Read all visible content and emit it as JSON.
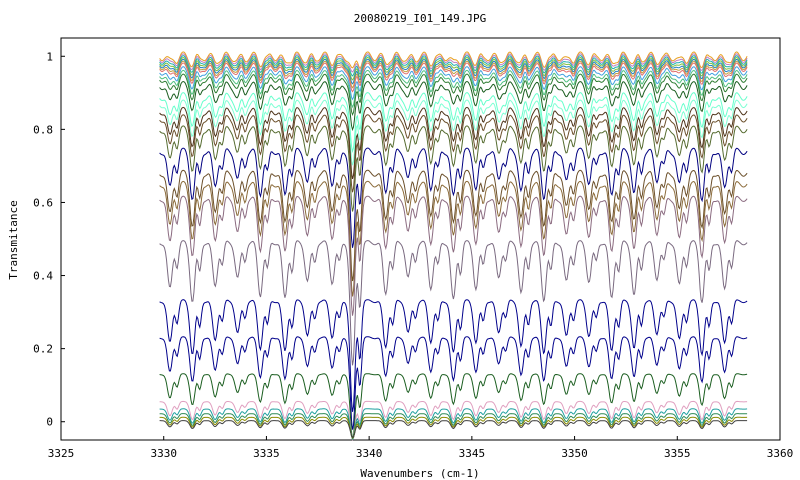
{
  "chart_data": {
    "type": "line",
    "title": "20080219_I01_149.JPG",
    "xlabel": "Wavenumbers (cm-1)",
    "ylabel": "Transmitance",
    "xlim": [
      3325,
      3360
    ],
    "ylim": [
      -0.05,
      1.05
    ],
    "x_ticks": [
      3325,
      3330,
      3335,
      3340,
      3345,
      3350,
      3355,
      3360
    ],
    "y_ticks": [
      0,
      0.2,
      0.4,
      0.6,
      0.8,
      1
    ],
    "x_tick_labels": [
      "3325",
      "3330",
      "3335",
      "3340",
      "3345",
      "3350",
      "3355",
      "3360"
    ],
    "y_tick_labels": [
      "0",
      "0.2",
      "0.4",
      "0.6",
      "0.8",
      "1"
    ],
    "x_range_of_data": [
      3329.8,
      3358.4
    ],
    "absorption_lines_cm1": [
      3330.3,
      3331.4,
      3332.5,
      3333.6,
      3334.7,
      3335.9,
      3337.0,
      3338.2,
      3339.2,
      3340.8,
      3341.9,
      3343.0,
      3344.1,
      3345.2,
      3346.3,
      3347.4,
      3348.5,
      3349.6,
      3350.7,
      3351.8,
      3352.9,
      3354.0,
      3355.1,
      3356.2,
      3357.3
    ],
    "legend": "none",
    "grid": false,
    "series": [
      {
        "color": "#e8a020",
        "baseline": 1.0
      },
      {
        "color": "#c080c0",
        "baseline": 0.995
      },
      {
        "color": "#20b0b0",
        "baseline": 0.99
      },
      {
        "color": "#80c040",
        "baseline": 0.985
      },
      {
        "color": "#2080c0",
        "baseline": 0.98
      },
      {
        "color": "#c0a040",
        "baseline": 0.975
      },
      {
        "color": "#e07070",
        "baseline": 0.97
      },
      {
        "color": "#40a0e0",
        "baseline": 0.96
      },
      {
        "color": "#50c080",
        "baseline": 0.95
      },
      {
        "color": "#2e7d32",
        "baseline": 0.94
      },
      {
        "color": "#1b5e20",
        "baseline": 0.92
      },
      {
        "color": "#66ffcc",
        "baseline": 0.89
      },
      {
        "color": "#7fffd4",
        "baseline": 0.87
      },
      {
        "color": "#4d3319",
        "baseline": 0.85
      },
      {
        "color": "#6b4f2a",
        "baseline": 0.83
      },
      {
        "color": "#556b2f",
        "baseline": 0.8
      },
      {
        "color": "#000080",
        "baseline": 0.74
      },
      {
        "color": "#6b4f2a",
        "baseline": 0.68
      },
      {
        "color": "#8b6b3a",
        "baseline": 0.65
      },
      {
        "color": "#8b6b80",
        "baseline": 0.61
      },
      {
        "color": "#7a6a80",
        "baseline": 0.49
      },
      {
        "color": "#00008b",
        "baseline": 0.33
      },
      {
        "color": "#00008b",
        "baseline": 0.23
      },
      {
        "color": "#1b5e20",
        "baseline": 0.13
      },
      {
        "color": "#e0a0c0",
        "baseline": 0.055
      },
      {
        "color": "#20a0a0",
        "baseline": 0.035
      },
      {
        "color": "#2e8b57",
        "baseline": 0.022
      },
      {
        "color": "#8b8b00",
        "baseline": 0.012
      },
      {
        "color": "#404040",
        "baseline": 0.003
      }
    ]
  }
}
